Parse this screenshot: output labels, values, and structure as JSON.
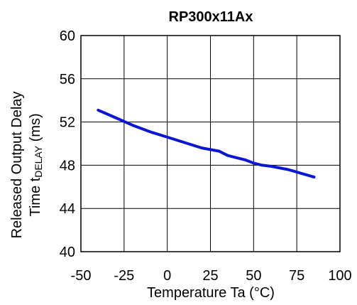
{
  "chart_data": {
    "type": "line",
    "title": "RP300x11Ax",
    "xlabel": {
      "main": "Temperature Ta (",
      "unit": "°C",
      "close": ")"
    },
    "ylabel": {
      "line1": "Released Output Delay",
      "line2_prefix": "Time t",
      "line2_sub": "DELAY",
      "line2_suffix": " (ms)"
    },
    "xlim": [
      -50,
      100
    ],
    "ylim": [
      40,
      60
    ],
    "x_ticks": [
      -50,
      -25,
      0,
      25,
      50,
      75,
      100
    ],
    "y_ticks": [
      40,
      44,
      48,
      52,
      56,
      60
    ],
    "grid": true,
    "x": [
      -40,
      -30,
      -20,
      -10,
      0,
      10,
      20,
      30,
      35,
      40,
      45,
      50,
      55,
      60,
      70,
      85
    ],
    "y": [
      53.1,
      52.4,
      51.7,
      51.1,
      50.6,
      50.1,
      49.6,
      49.3,
      48.9,
      48.7,
      48.5,
      48.2,
      48.0,
      47.9,
      47.6,
      46.9
    ],
    "colors": {
      "series": "#0a16d6"
    }
  }
}
